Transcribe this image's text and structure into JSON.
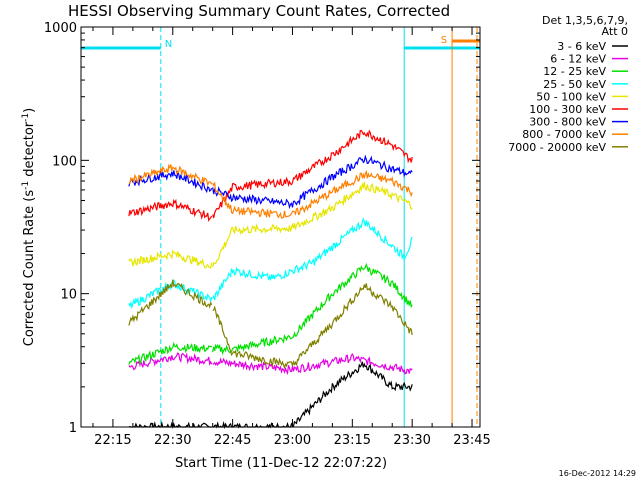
{
  "chart_data": {
    "type": "line",
    "title": "HESSI Observing Summary Count Rates, Corrected",
    "xlabel": "Start Time (11-Dec-12 22:07:22)",
    "ylabel_main": "Corrected Count Rate (s",
    "ylabel_exp": "-1",
    "ylabel_tail": " detector",
    "ylabel_close": ")",
    "y_scale": "log",
    "ylim": [
      1,
      1000
    ],
    "xlim": [
      "22:07",
      "23:47"
    ],
    "x_ticks": [
      "22:15",
      "22:30",
      "22:45",
      "23:00",
      "23:15",
      "23:30",
      "23:45"
    ],
    "y_ticks": [
      "1",
      "10",
      "100",
      "1000"
    ],
    "legend_title": [
      "Det 1,3,5,6,7,9,",
      "Att 0"
    ],
    "legend_placement": "right",
    "timestamp": "16-Dec-2012 14:29",
    "night_intervals": [
      {
        "label": "N",
        "start": "22:07",
        "end": "22:27"
      },
      {
        "label": "",
        "start": "23:28",
        "end": "23:47"
      }
    ],
    "saa_intervals": [
      {
        "label": "S",
        "start": "23:40",
        "end": "23:47"
      }
    ],
    "data_window": {
      "start": "22:19",
      "end": "23:30",
      "gap": "22:40"
    },
    "series": [
      {
        "name": "3 - 6 keV",
        "color": "#000000",
        "points": [
          [
            "22:30",
            1.0
          ],
          [
            "22:45",
            1.0
          ],
          [
            "23:00",
            1.0
          ],
          [
            "23:10",
            2.0
          ],
          [
            "23:18",
            3.0
          ],
          [
            "23:25",
            2.0
          ]
        ]
      },
      {
        "name": "6 - 12 keV",
        "color": "#e600e6",
        "points": [
          [
            "22:19",
            2.8
          ],
          [
            "22:30",
            3.4
          ],
          [
            "22:45",
            3.0
          ],
          [
            "23:00",
            2.7
          ],
          [
            "23:15",
            3.3
          ],
          [
            "23:30",
            2.6
          ]
        ]
      },
      {
        "name": "12 - 25 keV",
        "color": "#00e000",
        "points": [
          [
            "22:19",
            3.0
          ],
          [
            "22:30",
            4.0
          ],
          [
            "22:45",
            3.8
          ],
          [
            "23:00",
            4.8
          ],
          [
            "23:10",
            10
          ],
          [
            "23:18",
            16
          ],
          [
            "23:25",
            12
          ],
          [
            "23:30",
            8
          ]
        ]
      },
      {
        "name": "25 - 50 keV",
        "color": "#00ffff",
        "points": [
          [
            "22:19",
            8
          ],
          [
            "22:30",
            12
          ],
          [
            "22:40",
            9
          ],
          [
            "22:45",
            15
          ],
          [
            "22:55",
            13
          ],
          [
            "23:05",
            17
          ],
          [
            "23:18",
            35
          ],
          [
            "23:28",
            19
          ],
          [
            "23:30",
            25
          ]
        ]
      },
      {
        "name": "50 - 100 keV",
        "color": "#e6e600",
        "points": [
          [
            "22:19",
            17
          ],
          [
            "22:30",
            20
          ],
          [
            "22:40",
            16
          ],
          [
            "22:45",
            30
          ],
          [
            "23:00",
            31
          ],
          [
            "23:10",
            44
          ],
          [
            "23:18",
            65
          ],
          [
            "23:25",
            55
          ],
          [
            "23:30",
            46
          ]
        ]
      },
      {
        "name": "100 - 300 keV",
        "color": "#ff0000",
        "points": [
          [
            "22:19",
            40
          ],
          [
            "22:30",
            48
          ],
          [
            "22:40",
            37
          ],
          [
            "22:45",
            63
          ],
          [
            "23:00",
            70
          ],
          [
            "23:10",
            110
          ],
          [
            "23:18",
            165
          ],
          [
            "23:25",
            130
          ],
          [
            "23:30",
            100
          ]
        ]
      },
      {
        "name": "300 - 800 keV",
        "color": "#0000ff",
        "points": [
          [
            "22:19",
            68
          ],
          [
            "22:30",
            80
          ],
          [
            "22:40",
            60
          ],
          [
            "22:45",
            53
          ],
          [
            "23:00",
            47
          ],
          [
            "23:10",
            75
          ],
          [
            "23:18",
            103
          ],
          [
            "23:25",
            86
          ],
          [
            "23:30",
            78
          ]
        ]
      },
      {
        "name": "800 - 7000 keV",
        "color": "#ff8000",
        "points": [
          [
            "22:19",
            70
          ],
          [
            "22:30",
            88
          ],
          [
            "22:40",
            66
          ],
          [
            "22:45",
            42
          ],
          [
            "23:00",
            39
          ],
          [
            "23:10",
            58
          ],
          [
            "23:18",
            78
          ],
          [
            "23:25",
            70
          ],
          [
            "23:30",
            58
          ]
        ]
      },
      {
        "name": "7000 - 20000 keV",
        "color": "#808000",
        "points": [
          [
            "22:19",
            6
          ],
          [
            "22:30",
            12
          ],
          [
            "22:40",
            8
          ],
          [
            "22:45",
            3.6
          ],
          [
            "23:00",
            2.9
          ],
          [
            "23:10",
            6
          ],
          [
            "23:18",
            11.5
          ],
          [
            "23:25",
            8
          ],
          [
            "23:30",
            5
          ]
        ]
      }
    ]
  }
}
